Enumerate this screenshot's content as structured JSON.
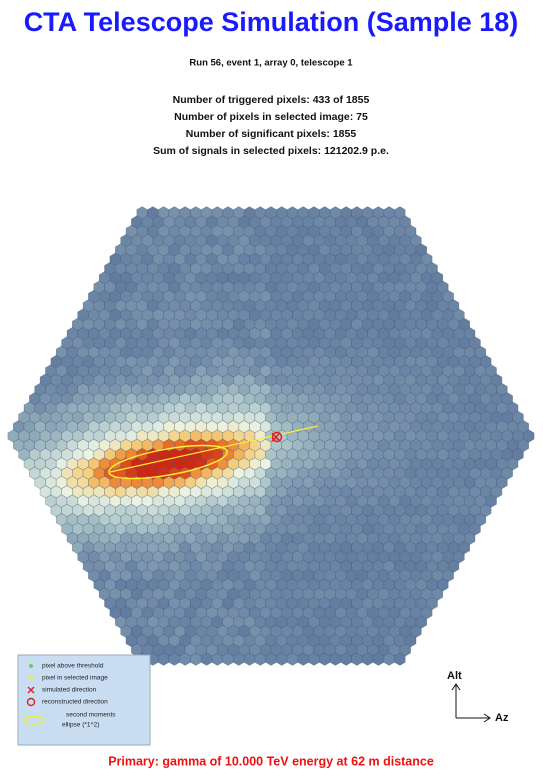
{
  "header": {
    "title": "CTA Telescope Simulation (Sample 18)",
    "run": "Run 56, event 1, array 0, telescope 1"
  },
  "stats": [
    "Number of triggered pixels: 433 of 1855",
    "Number of pixels in selected image: 75",
    "Number of significant pixels: 1855",
    "Sum of signals in selected pixels: 121202.9 p.e."
  ],
  "legend": [
    "pixel above threshold",
    "pixel in selected image",
    "simulated direction",
    "reconstructed direction",
    "second moments",
    "ellipse (*1^2)"
  ],
  "axes": {
    "alt": "Alt",
    "az": "Az"
  },
  "footer": "Primary: gamma of 10.000 TeV energy at 62 m distance"
}
